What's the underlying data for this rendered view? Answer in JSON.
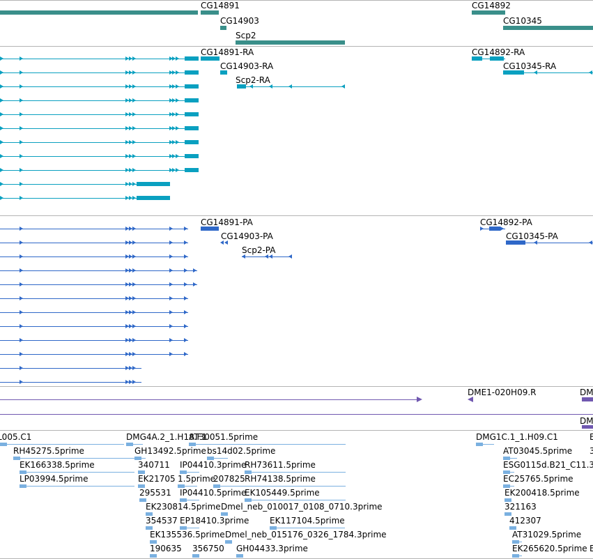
{
  "colors": {
    "gene": "#3a8f8a",
    "transcript_ra": "#0aa0c0",
    "transcript_pa": "#2f68c8",
    "clone": "#7058b0",
    "est": "#7ab0e0",
    "separator": "#b4b4b4"
  },
  "genes": {
    "labels": [
      "CG14891",
      "CG14903",
      "Scp2",
      "CG14892",
      "CG10345"
    ]
  },
  "transcripts_ra": {
    "labels": [
      "CG14891-RA",
      "CG14903-RA",
      "Scp2-RA",
      "CG14892-RA",
      "CG10345-RA"
    ]
  },
  "transcripts_pa": {
    "labels": [
      "CG14891-PA",
      "CG14903-PA",
      "Scp2-PA",
      "CG14892-PA",
      "CG10345-PA"
    ]
  },
  "clones": {
    "labels": [
      "DME1-020H09.R",
      "DM",
      "DM"
    ]
  },
  "ests": {
    "labels": [
      "L005.C1",
      "DMG4A.2_1.H18.F1",
      "AT30051.5prime",
      "DMG1C.1_1.H09.C1",
      "E",
      "RH45275.5prime",
      "GH13492.5prime",
      "bs14d02.5prime",
      "AT03045.5prime",
      "3",
      "EK166338.5prime",
      "340711",
      "IP04410.3prime",
      "RH73611.5prime",
      "ESG0115d.B21_C11.3",
      "LP03994.5prime",
      "EK21705",
      "1.5prime",
      "207825",
      "RH74138.5prime",
      "EC25765.5prime",
      "295531",
      "IP04410.5prime",
      "EK105449.5prime",
      "EK200418.5prime",
      "EK230814.5prime",
      "Dmel_neb_010017_0108_0710.3prime",
      "321163",
      "354537",
      "EP18410.3prime",
      "EK117104.5prime",
      "412307",
      "EK135536.5prime",
      "Dmel_neb_015176_0326_1784.3prime",
      "AT31029.5prime",
      "190635",
      "356750",
      "GH04433.3prime",
      "EK265620.5prime",
      "E"
    ]
  }
}
